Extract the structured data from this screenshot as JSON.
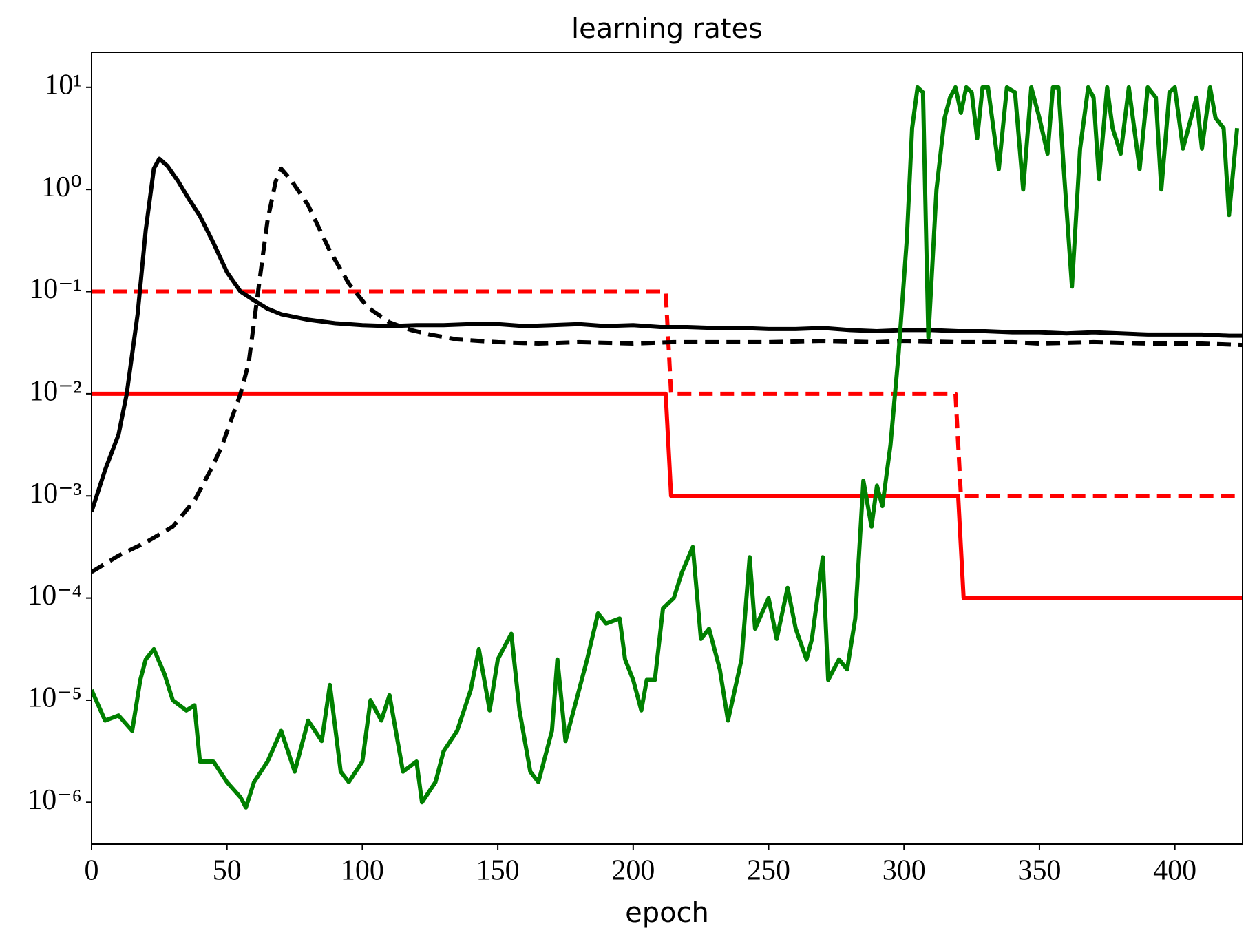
{
  "chart_data": {
    "type": "line",
    "title": "learning rates",
    "x_label": "epoch",
    "xlim": [
      0,
      425
    ],
    "xticks": [
      0,
      50,
      100,
      150,
      200,
      250,
      300,
      350,
      400
    ],
    "ylim": [
      3.9e-07,
      22
    ],
    "yscale": "log",
    "yticks": [
      {
        "value": 1e-06,
        "label": "10⁻⁶"
      },
      {
        "value": 1e-05,
        "label": "10⁻⁵"
      },
      {
        "value": 0.0001,
        "label": "10⁻⁴"
      },
      {
        "value": 0.001,
        "label": "10⁻³"
      },
      {
        "value": 0.01,
        "label": "10⁻²"
      },
      {
        "value": 0.1,
        "label": "10⁻¹"
      },
      {
        "value": 1,
        "label": "10⁰"
      },
      {
        "value": 10,
        "label": "10¹"
      }
    ],
    "grid": false,
    "series": [
      {
        "color": "#ff0000",
        "linestyle": "solid",
        "x": [
          0,
          212,
          214,
          320,
          322,
          425
        ],
        "values": [
          0.01,
          0.01,
          0.001,
          0.001,
          0.0001,
          0.0001
        ]
      },
      {
        "color": "#ff0000",
        "linestyle": "dashed",
        "x": [
          0,
          212,
          214,
          319,
          321,
          425
        ],
        "values": [
          0.1,
          0.1,
          0.01,
          0.01,
          0.001,
          0.001
        ]
      },
      {
        "color": "#000000",
        "linestyle": "solid",
        "x": [
          0,
          5,
          10,
          13,
          17,
          20,
          23,
          25,
          28,
          32,
          36,
          40,
          45,
          50,
          55,
          60,
          65,
          70,
          80,
          90,
          100,
          110,
          120,
          130,
          140,
          150,
          160,
          170,
          180,
          190,
          200,
          210,
          220,
          230,
          240,
          250,
          260,
          270,
          280,
          290,
          300,
          310,
          320,
          330,
          340,
          350,
          360,
          370,
          380,
          390,
          400,
          410,
          420,
          425
        ],
        "values": [
          0.0007,
          0.0018,
          0.004,
          0.01,
          0.06,
          0.4,
          1.6,
          2,
          1.7,
          1.2,
          0.8,
          0.55,
          0.3,
          0.155,
          0.1,
          0.082,
          0.068,
          0.06,
          0.053,
          0.049,
          0.047,
          0.046,
          0.047,
          0.047,
          0.048,
          0.048,
          0.046,
          0.047,
          0.048,
          0.046,
          0.047,
          0.045,
          0.045,
          0.044,
          0.044,
          0.043,
          0.043,
          0.044,
          0.042,
          0.041,
          0.042,
          0.042,
          0.041,
          0.041,
          0.04,
          0.04,
          0.039,
          0.04,
          0.039,
          0.038,
          0.038,
          0.038,
          0.037,
          0.037
        ]
      },
      {
        "color": "#000000",
        "linestyle": "dashed",
        "x": [
          0,
          10,
          20,
          30,
          38,
          44,
          48,
          52,
          55,
          58,
          60,
          63,
          65,
          68,
          70,
          74,
          80,
          88,
          95,
          102,
          110,
          118,
          125,
          135,
          150,
          165,
          180,
          200,
          215,
          230,
          250,
          270,
          290,
          300,
          320,
          340,
          350,
          370,
          390,
          410,
          425
        ],
        "values": [
          0.00018,
          0.00026,
          0.00035,
          0.0005,
          0.0009,
          0.0018,
          0.003,
          0.006,
          0.01,
          0.02,
          0.05,
          0.2,
          0.5,
          1.2,
          1.6,
          1.2,
          0.7,
          0.25,
          0.12,
          0.07,
          0.05,
          0.042,
          0.038,
          0.034,
          0.032,
          0.031,
          0.032,
          0.031,
          0.032,
          0.032,
          0.032,
          0.033,
          0.032,
          0.033,
          0.032,
          0.032,
          0.031,
          0.032,
          0.031,
          0.031,
          0.03
        ]
      },
      {
        "color": "#008000",
        "linestyle": "solid",
        "x": [
          0,
          5,
          10,
          15,
          18,
          20,
          23,
          27,
          30,
          35,
          38,
          40,
          45,
          50,
          55,
          57,
          60,
          65,
          70,
          75,
          80,
          85,
          88,
          92,
          95,
          100,
          103,
          107,
          110,
          115,
          120,
          122,
          127,
          130,
          135,
          140,
          143,
          147,
          150,
          155,
          158,
          162,
          165,
          170,
          172,
          175,
          178,
          183,
          187,
          190,
          195,
          197,
          200,
          203,
          205,
          208,
          211,
          215,
          218,
          222,
          225,
          228,
          232,
          235,
          240,
          243,
          245,
          250,
          253,
          257,
          260,
          264,
          266,
          270,
          272,
          276,
          279,
          282,
          285,
          288,
          290,
          292,
          295,
          298,
          301,
          303,
          305,
          307,
          309,
          312,
          315,
          317,
          319,
          321,
          323,
          325,
          327,
          329,
          331,
          333,
          335,
          338,
          341,
          344,
          347,
          350,
          353,
          355,
          357,
          359,
          362,
          365,
          368,
          370,
          372,
          375,
          377,
          380,
          383,
          385,
          387,
          390,
          393,
          395,
          398,
          400,
          403,
          405,
          408,
          410,
          413,
          415,
          418,
          420,
          423
        ],
        "values": [
          1.26e-05,
          6.31e-06,
          7.08e-06,
          5.01e-06,
          1.58e-05,
          2.51e-05,
          3.16e-05,
          1.78e-05,
          1e-05,
          7.94e-06,
          8.91e-06,
          2.51e-06,
          2.51e-06,
          1.58e-06,
          1.12e-06,
          8.91e-07,
          1.58e-06,
          2.51e-06,
          5.01e-06,
          2e-06,
          6.31e-06,
          3.98e-06,
          1.41e-05,
          2e-06,
          1.58e-06,
          2.51e-06,
          1e-05,
          6.31e-06,
          1.12e-05,
          2e-06,
          2.51e-06,
          1e-06,
          1.58e-06,
          3.16e-06,
          5.01e-06,
          1.26e-05,
          3.16e-05,
          7.94e-06,
          2.51e-05,
          4.47e-05,
          7.94e-06,
          2e-06,
          1.58e-06,
          5.01e-06,
          2.51e-05,
          3.98e-06,
          7.94e-06,
          2.51e-05,
          7.08e-05,
          5.62e-05,
          6.31e-05,
          2.51e-05,
          1.58e-05,
          7.94e-06,
          1.58e-05,
          1.58e-05,
          7.94e-05,
          0.0001,
          0.000178,
          0.000316,
          3.98e-05,
          5.01e-05,
          2e-05,
          6.31e-06,
          2.51e-05,
          0.000251,
          5.01e-05,
          0.0001,
          3.98e-05,
          0.000126,
          5.01e-05,
          2.51e-05,
          3.98e-05,
          0.000251,
          1.58e-05,
          2.51e-05,
          2e-05,
          6.31e-05,
          0.00141,
          0.000501,
          0.00126,
          0.000794,
          0.00316,
          0.0251,
          0.316,
          3.98,
          10,
          8.91,
          0.0355,
          1,
          5.01,
          7.94,
          10,
          5.62,
          10,
          8.91,
          3.16,
          10,
          10,
          3.98,
          1.58,
          10,
          8.91,
          1,
          10,
          5.01,
          2.24,
          10,
          10,
          1.58,
          0.112,
          2.51,
          10,
          7.94,
          1.26,
          10,
          3.98,
          2.24,
          10,
          3.98,
          1.58,
          10,
          7.94,
          1,
          8.91,
          10,
          2.51,
          3.98,
          7.94,
          2.51,
          10,
          5.01,
          3.98,
          0.562,
          3.98
        ]
      }
    ]
  }
}
